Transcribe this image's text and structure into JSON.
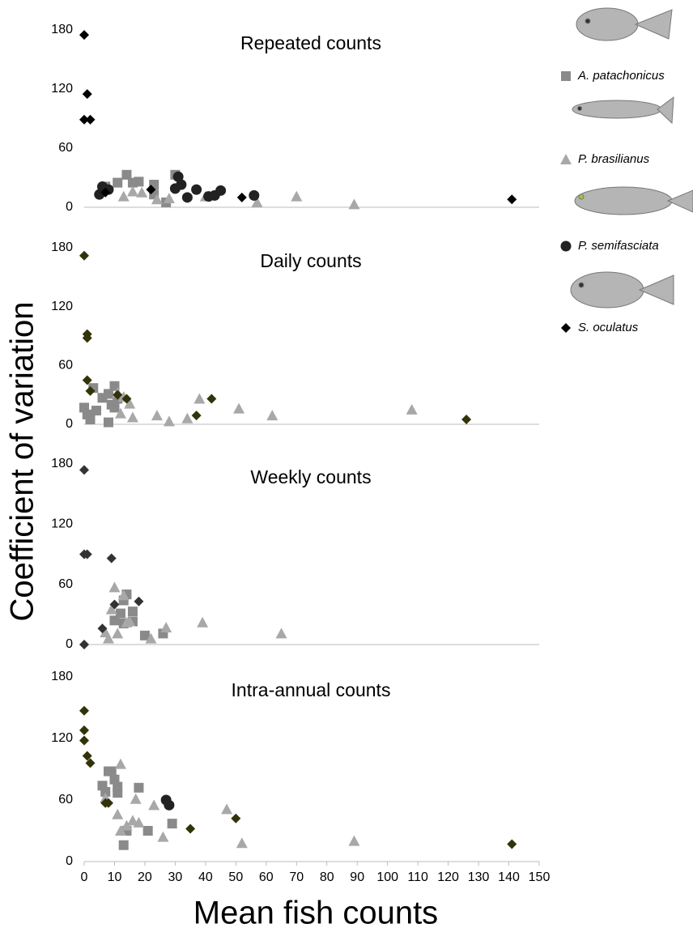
{
  "axis_labels": {
    "x": "Mean fish counts",
    "y": "Coefficient of variation"
  },
  "chart_data": [
    {
      "type": "scatter",
      "title": "Repeated counts",
      "xlim": [
        0,
        150
      ],
      "ylim": [
        0,
        180
      ],
      "yticks": [
        0,
        60,
        120,
        180
      ],
      "series": [
        {
          "name": "A. patachonicus",
          "marker": "square",
          "color": "#8a8a8a",
          "x": [
            7,
            11,
            14,
            16,
            18,
            23,
            23,
            27,
            30,
            6
          ],
          "values": [
            21,
            25,
            33,
            25,
            26,
            23,
            13,
            5,
            33,
            16
          ]
        },
        {
          "name": "P. brasilianus",
          "marker": "triangle",
          "color": "#a8a8a8",
          "x": [
            13,
            16,
            19,
            24,
            28,
            40,
            57,
            70,
            89
          ],
          "values": [
            11,
            16,
            15,
            8,
            9,
            11,
            5,
            11,
            3
          ]
        },
        {
          "name": "P. semifasciata",
          "marker": "circle",
          "color": "#222222",
          "x": [
            5,
            6,
            8,
            30,
            31,
            32,
            34,
            37,
            41,
            43,
            45,
            56
          ],
          "values": [
            13,
            21,
            18,
            19,
            31,
            23,
            10,
            18,
            11,
            12,
            17,
            12
          ]
        },
        {
          "name": "S. oculatus",
          "marker": "diamond",
          "color": "#000000",
          "x": [
            0,
            1,
            0,
            2,
            22,
            7,
            52,
            141
          ],
          "values": [
            175,
            115,
            89,
            89,
            18,
            15,
            10,
            8
          ]
        }
      ]
    },
    {
      "type": "scatter",
      "title": "Daily counts",
      "xlim": [
        0,
        150
      ],
      "ylim": [
        0,
        180
      ],
      "yticks": [
        0,
        60,
        120,
        180
      ],
      "series": [
        {
          "name": "A. patachonicus",
          "marker": "square",
          "color": "#8a8a8a",
          "x": [
            0,
            1,
            2,
            3,
            4,
            6,
            8,
            8,
            9,
            10,
            10,
            11
          ],
          "values": [
            17,
            10,
            5,
            37,
            14,
            27,
            31,
            2,
            20,
            39,
            17,
            26
          ]
        },
        {
          "name": "P. brasilianus",
          "marker": "triangle",
          "color": "#a8a8a8",
          "x": [
            11,
            12,
            13,
            15,
            16,
            24,
            28,
            34,
            38,
            51,
            62,
            108
          ],
          "values": [
            32,
            11,
            28,
            21,
            7,
            9,
            3,
            6,
            26,
            16,
            9,
            15
          ]
        },
        {
          "name": "S. oculatus",
          "marker": "diamond",
          "color": "#33330a",
          "x": [
            0,
            1,
            1,
            1,
            2,
            11,
            14,
            37,
            42,
            126
          ],
          "values": [
            172,
            92,
            88,
            45,
            34,
            30,
            26,
            9,
            26,
            5
          ]
        }
      ]
    },
    {
      "type": "scatter",
      "title": "Weekly counts",
      "xlim": [
        0,
        150
      ],
      "ylim": [
        0,
        180
      ],
      "yticks": [
        0,
        60,
        120,
        180
      ],
      "series": [
        {
          "name": "A. patachonicus",
          "marker": "square",
          "color": "#8a8a8a",
          "x": [
            10,
            12,
            13,
            14,
            16,
            13,
            16,
            20,
            26
          ],
          "values": [
            24,
            31,
            44,
            50,
            33,
            21,
            23,
            9,
            11
          ]
        },
        {
          "name": "P. brasilianus",
          "marker": "triangle",
          "color": "#a8a8a8",
          "x": [
            7,
            8,
            9,
            10,
            11,
            13,
            14,
            15,
            22,
            27,
            39,
            65
          ],
          "values": [
            12,
            6,
            35,
            57,
            11,
            49,
            22,
            23,
            6,
            17,
            22,
            11
          ]
        },
        {
          "name": "S. oculatus",
          "marker": "diamond",
          "color": "#333333",
          "x": [
            0,
            0,
            1,
            9,
            0,
            6,
            10,
            18
          ],
          "values": [
            174,
            90,
            90,
            86,
            0,
            16,
            40,
            43
          ]
        }
      ]
    },
    {
      "type": "scatter",
      "title": "Intra-annual counts",
      "xlim": [
        0,
        150
      ],
      "ylim": [
        0,
        180
      ],
      "yticks": [
        0,
        60,
        120,
        180
      ],
      "xticks": [
        0,
        10,
        20,
        30,
        40,
        50,
        60,
        70,
        80,
        90,
        100,
        110,
        120,
        130,
        140,
        150
      ],
      "series": [
        {
          "name": "A. patachonicus",
          "marker": "square",
          "color": "#8a8a8a",
          "x": [
            6,
            7,
            8,
            9,
            10,
            11,
            11,
            18,
            13,
            14,
            21,
            29
          ],
          "values": [
            74,
            68,
            88,
            88,
            80,
            73,
            67,
            72,
            16,
            30,
            30,
            37
          ]
        },
        {
          "name": "P. brasilianus",
          "marker": "triangle",
          "color": "#a8a8a8",
          "x": [
            7,
            11,
            12,
            12,
            14,
            16,
            17,
            18,
            23,
            26,
            47,
            52,
            89
          ],
          "values": [
            62,
            46,
            95,
            30,
            35,
            40,
            61,
            38,
            55,
            24,
            51,
            18,
            20
          ]
        },
        {
          "name": "P. semifasciata",
          "marker": "circle",
          "color": "#222222",
          "x": [
            27,
            28
          ],
          "values": [
            60,
            55
          ]
        },
        {
          "name": "S. oculatus",
          "marker": "diamond",
          "color": "#33330a",
          "x": [
            0,
            0,
            0,
            1,
            2,
            7,
            8,
            35,
            50,
            141
          ],
          "values": [
            147,
            128,
            118,
            103,
            96,
            57,
            57,
            32,
            42,
            17
          ]
        }
      ]
    }
  ]
}
